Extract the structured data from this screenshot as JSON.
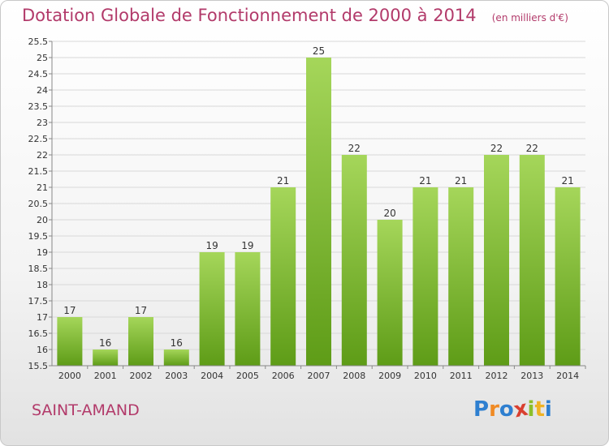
{
  "header": {
    "title": "Dotation Globale de Fonctionnement de 2000 à 2014",
    "unit": "(en milliers d'€)"
  },
  "footer": {
    "commune": "SAINT-AMAND",
    "logo_text": "Proxiti",
    "logo_letters": [
      {
        "char": "P",
        "color": "#2e7fd0"
      },
      {
        "char": "r",
        "color": "#f08a24"
      },
      {
        "char": "o",
        "color": "#2e7fd0"
      },
      {
        "char": "x",
        "color": "#d93f2f"
      },
      {
        "char": "i",
        "color": "#8bbf2a"
      },
      {
        "char": "t",
        "color": "#f0b224"
      },
      {
        "char": "i",
        "color": "#2e7fd0"
      }
    ]
  },
  "colors": {
    "title": "#b23a6a",
    "bar_top": "#a5d65a",
    "bar_bottom": "#5e9c17",
    "grid": "#d8d8d8",
    "axis": "#888888",
    "text": "#333333"
  },
  "chart_data": {
    "type": "bar",
    "title": "Dotation Globale de Fonctionnement de 2000 à 2014",
    "xlabel": "",
    "ylabel": "",
    "categories": [
      "2000",
      "2001",
      "2002",
      "2003",
      "2004",
      "2005",
      "2006",
      "2007",
      "2008",
      "2009",
      "2010",
      "2011",
      "2012",
      "2013",
      "2014"
    ],
    "values": [
      17,
      16,
      17,
      16,
      19,
      19,
      21,
      25,
      22,
      20,
      21,
      21,
      22,
      22,
      21
    ],
    "ylim": [
      15.5,
      25.5
    ],
    "ytick_step": 0.5,
    "yticks": [
      "15.5",
      "16",
      "16.5",
      "17",
      "17.5",
      "18",
      "18.5",
      "19",
      "19.5",
      "20",
      "20.5",
      "21",
      "21.5",
      "22",
      "22.5",
      "23",
      "23.5",
      "24",
      "24.5",
      "25",
      "25.5"
    ],
    "grid": true,
    "data_labels": true
  }
}
